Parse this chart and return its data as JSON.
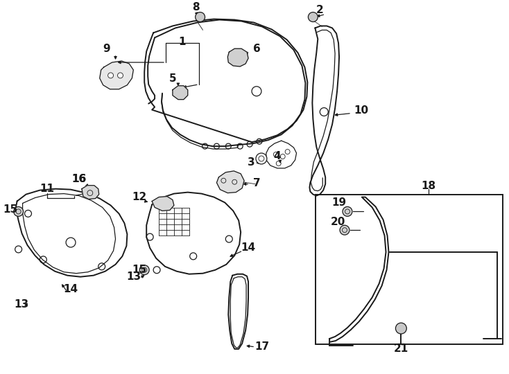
{
  "bg_color": "#ffffff",
  "line_color": "#1a1a1a",
  "fig_width": 7.34,
  "fig_height": 5.4,
  "dpi": 100,
  "lw_main": 1.4,
  "lw_thin": 0.9,
  "lw_hair": 0.6
}
